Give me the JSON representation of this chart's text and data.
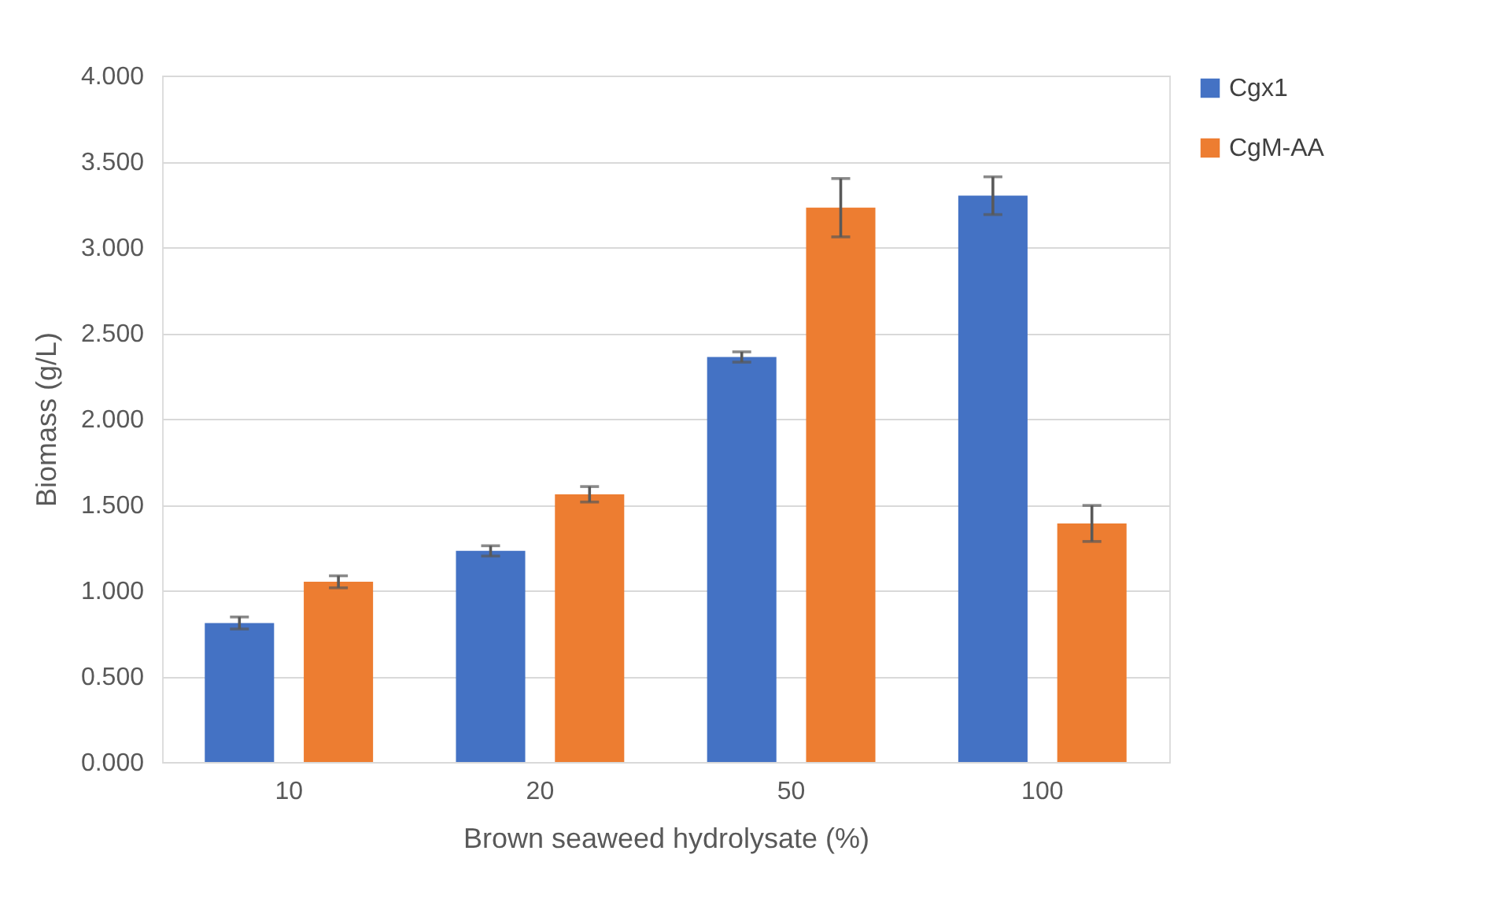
{
  "chart_data": {
    "type": "bar",
    "xlabel": "Brown seaweed hydrolysate (%)",
    "ylabel": "Biomass (g/L)",
    "categories": [
      "10",
      "20",
      "50",
      "100"
    ],
    "series": [
      {
        "name": "Cgx1",
        "color": "#4472c4",
        "values": [
          0.81,
          1.23,
          2.36,
          3.3
        ],
        "errors": [
          0.035,
          0.03,
          0.03,
          0.11
        ]
      },
      {
        "name": "CgM-AA",
        "color": "#ed7d31",
        "values": [
          1.05,
          1.56,
          3.23,
          1.39
        ],
        "errors": [
          0.035,
          0.045,
          0.17,
          0.105
        ]
      }
    ],
    "ylim": [
      0,
      4
    ],
    "yticks": [
      {
        "value": 0,
        "label": "0.000"
      },
      {
        "value": 0.5,
        "label": "0.500"
      },
      {
        "value": 1,
        "label": "1.000"
      },
      {
        "value": 1.5,
        "label": "1.500"
      },
      {
        "value": 2,
        "label": "2.000"
      },
      {
        "value": 2.5,
        "label": "2.500"
      },
      {
        "value": 3,
        "label": "3.000"
      },
      {
        "value": 3.5,
        "label": "3.500"
      },
      {
        "value": 4,
        "label": "4.000"
      }
    ],
    "grid": "y",
    "legend": "right"
  }
}
